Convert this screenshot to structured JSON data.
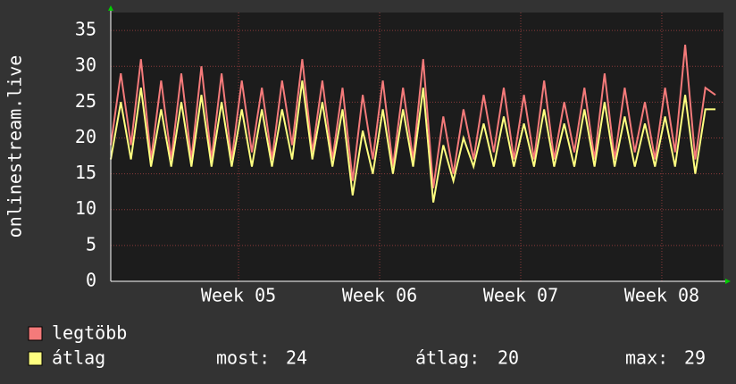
{
  "chart_data": {
    "type": "line",
    "y_label": "onlinestream.live",
    "x": [
      0,
      0.5,
      1,
      1.5,
      2,
      2.5,
      3,
      3.5,
      4,
      4.5,
      5,
      5.5,
      6,
      6.5,
      7,
      7.5,
      8,
      8.5,
      9,
      9.5,
      10,
      10.5,
      11,
      11.5,
      12,
      12.5,
      13,
      13.5,
      14,
      14.5,
      15,
      15.5,
      16,
      16.5,
      17,
      17.5,
      18,
      18.5,
      19,
      19.5,
      20,
      20.5,
      21,
      21.5,
      22,
      22.5,
      23,
      23.5,
      24,
      24.5,
      25,
      25.5,
      26,
      26.5,
      27,
      27.5,
      28,
      28.5,
      29,
      29.5,
      30
    ],
    "series": [
      {
        "name": "legtöbb",
        "color": "#f47a7a",
        "values": [
          19,
          29,
          19,
          31,
          17,
          28,
          17,
          29,
          17,
          30,
          17,
          29,
          17,
          28,
          18,
          27,
          17,
          28,
          19,
          31,
          18,
          28,
          17,
          27,
          14,
          26,
          17,
          28,
          16,
          27,
          17,
          31,
          13,
          23,
          15,
          24,
          17,
          26,
          18,
          27,
          17,
          26,
          17,
          28,
          17,
          25,
          18,
          27,
          17,
          29,
          17,
          27,
          18,
          25,
          17,
          27,
          18,
          33,
          17,
          27,
          26
        ]
      },
      {
        "name": "átlag",
        "color": "#ffff80",
        "values": [
          17,
          25,
          17,
          27,
          16,
          24,
          16,
          25,
          16,
          26,
          16,
          25,
          16,
          24,
          16,
          24,
          16,
          24,
          17,
          28,
          17,
          25,
          16,
          24,
          12,
          21,
          15,
          24,
          15,
          24,
          16,
          27,
          11,
          19,
          14,
          20,
          16,
          22,
          16,
          23,
          16,
          22,
          16,
          24,
          16,
          22,
          16,
          24,
          16,
          25,
          16,
          23,
          16,
          22,
          16,
          23,
          16,
          26,
          15,
          24,
          24
        ]
      }
    ],
    "xlim": [
      0,
      30.4
    ],
    "xticks": [
      {
        "value": 6.34,
        "label": "Week 05"
      },
      {
        "value": 13.34,
        "label": "Week 06"
      },
      {
        "value": 20.34,
        "label": "Week 07"
      },
      {
        "value": 27.34,
        "label": "Week 08"
      }
    ],
    "ylim": [
      0,
      37.5
    ],
    "yticks": [
      0,
      5,
      10,
      15,
      20,
      25,
      30,
      35
    ],
    "grid": true,
    "stats": [
      {
        "label": "most:",
        "value": 24
      },
      {
        "label": "átlag:",
        "value": 20
      },
      {
        "label": "max:",
        "value": 29
      }
    ]
  }
}
